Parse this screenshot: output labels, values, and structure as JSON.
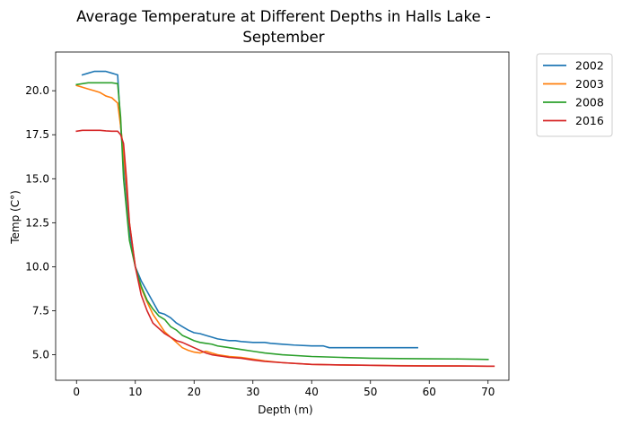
{
  "chart_data": {
    "type": "line",
    "title_lines": [
      "Average Temperature at Different Depths in Halls Lake -",
      "September"
    ],
    "xlabel": "Depth (m)",
    "ylabel": "Temp (C°)",
    "xlim": [
      -3.55,
      73.55
    ],
    "ylim": [
      3.55,
      22.2
    ],
    "xticks": [
      0,
      10,
      20,
      30,
      40,
      50,
      60,
      70
    ],
    "xtick_labels": [
      "0",
      "10",
      "20",
      "30",
      "40",
      "50",
      "60",
      "70"
    ],
    "yticks": [
      5.0,
      7.5,
      10.0,
      12.5,
      15.0,
      17.5,
      20.0
    ],
    "ytick_labels": [
      "5.0",
      "7.5",
      "10.0",
      "12.5",
      "15.0",
      "17.5",
      "20.0"
    ],
    "grid": false,
    "legend_position": "outside-top-right",
    "series": [
      {
        "name": "2002",
        "color": "#1f77b4",
        "points": [
          [
            1,
            20.9
          ],
          [
            2,
            21.0
          ],
          [
            3,
            21.1
          ],
          [
            4,
            21.1
          ],
          [
            5,
            21.1
          ],
          [
            6,
            21.0
          ],
          [
            7,
            20.9
          ],
          [
            7.5,
            18.0
          ],
          [
            8,
            16.0
          ],
          [
            9,
            12.0
          ],
          [
            10,
            10.0
          ],
          [
            11,
            9.2
          ],
          [
            12,
            8.6
          ],
          [
            13,
            8.0
          ],
          [
            14,
            7.4
          ],
          [
            15,
            7.3
          ],
          [
            16,
            7.1
          ],
          [
            17,
            6.8
          ],
          [
            18,
            6.6
          ],
          [
            19,
            6.4
          ],
          [
            20,
            6.25
          ],
          [
            21,
            6.2
          ],
          [
            22,
            6.1
          ],
          [
            23,
            6.0
          ],
          [
            24,
            5.9
          ],
          [
            25,
            5.85
          ],
          [
            26,
            5.8
          ],
          [
            27,
            5.8
          ],
          [
            28,
            5.75
          ],
          [
            30,
            5.7
          ],
          [
            32,
            5.7
          ],
          [
            33,
            5.65
          ],
          [
            35,
            5.6
          ],
          [
            37,
            5.55
          ],
          [
            40,
            5.5
          ],
          [
            42,
            5.5
          ],
          [
            43,
            5.4
          ],
          [
            45,
            5.4
          ],
          [
            50,
            5.4
          ],
          [
            55,
            5.4
          ],
          [
            58,
            5.4
          ]
        ]
      },
      {
        "name": "2003",
        "color": "#ff7f0e",
        "points": [
          [
            0,
            20.3
          ],
          [
            1,
            20.2
          ],
          [
            2,
            20.1
          ],
          [
            3,
            20.0
          ],
          [
            4,
            19.9
          ],
          [
            5,
            19.7
          ],
          [
            6,
            19.6
          ],
          [
            7,
            19.3
          ],
          [
            7.5,
            18.0
          ],
          [
            8,
            16.5
          ],
          [
            9,
            12.5
          ],
          [
            10,
            10.0
          ],
          [
            11,
            8.8
          ],
          [
            12,
            8.0
          ],
          [
            13,
            7.3
          ],
          [
            14,
            6.8
          ],
          [
            15,
            6.3
          ],
          [
            16,
            6.0
          ],
          [
            17,
            5.7
          ],
          [
            18,
            5.4
          ],
          [
            19,
            5.25
          ],
          [
            20,
            5.15
          ],
          [
            21,
            5.1
          ],
          [
            22,
            5.2
          ],
          [
            23,
            5.1
          ],
          [
            24,
            5.0
          ],
          [
            25,
            4.95
          ],
          [
            26,
            4.9
          ],
          [
            28,
            4.85
          ],
          [
            30,
            4.75
          ],
          [
            32,
            4.65
          ],
          [
            35,
            4.55
          ],
          [
            40,
            4.45
          ],
          [
            45,
            4.42
          ],
          [
            50,
            4.4
          ],
          [
            55,
            4.38
          ],
          [
            60,
            4.37
          ],
          [
            65,
            4.36
          ],
          [
            70,
            4.35
          ],
          [
            71,
            4.35
          ]
        ]
      },
      {
        "name": "2008",
        "color": "#2ca02c",
        "points": [
          [
            0,
            20.35
          ],
          [
            1,
            20.4
          ],
          [
            2,
            20.45
          ],
          [
            3,
            20.45
          ],
          [
            4,
            20.45
          ],
          [
            5,
            20.45
          ],
          [
            6,
            20.45
          ],
          [
            7,
            20.4
          ],
          [
            7.5,
            18.5
          ],
          [
            8,
            15.0
          ],
          [
            9,
            11.5
          ],
          [
            10,
            10.0
          ],
          [
            11,
            8.9
          ],
          [
            12,
            8.1
          ],
          [
            13,
            7.6
          ],
          [
            14,
            7.2
          ],
          [
            15,
            7.0
          ],
          [
            16,
            6.6
          ],
          [
            17,
            6.4
          ],
          [
            18,
            6.1
          ],
          [
            19,
            5.95
          ],
          [
            20,
            5.8
          ],
          [
            21,
            5.7
          ],
          [
            22,
            5.65
          ],
          [
            23,
            5.6
          ],
          [
            24,
            5.5
          ],
          [
            25,
            5.45
          ],
          [
            26,
            5.4
          ],
          [
            28,
            5.3
          ],
          [
            30,
            5.2
          ],
          [
            32,
            5.1
          ],
          [
            35,
            5.0
          ],
          [
            40,
            4.9
          ],
          [
            45,
            4.85
          ],
          [
            50,
            4.8
          ],
          [
            55,
            4.78
          ],
          [
            60,
            4.77
          ],
          [
            65,
            4.76
          ],
          [
            70,
            4.73
          ]
        ]
      },
      {
        "name": "2016",
        "color": "#d62728",
        "points": [
          [
            0,
            17.7
          ],
          [
            1,
            17.75
          ],
          [
            2,
            17.75
          ],
          [
            3,
            17.75
          ],
          [
            4,
            17.75
          ],
          [
            5,
            17.72
          ],
          [
            6,
            17.7
          ],
          [
            7,
            17.7
          ],
          [
            7.5,
            17.5
          ],
          [
            8,
            17.0
          ],
          [
            8.5,
            15.0
          ],
          [
            9,
            12.5
          ],
          [
            10,
            10.0
          ],
          [
            11,
            8.4
          ],
          [
            12,
            7.5
          ],
          [
            13,
            6.8
          ],
          [
            14,
            6.5
          ],
          [
            15,
            6.2
          ],
          [
            16,
            6.0
          ],
          [
            17,
            5.8
          ],
          [
            18,
            5.7
          ],
          [
            19,
            5.55
          ],
          [
            20,
            5.4
          ],
          [
            21,
            5.25
          ],
          [
            22,
            5.1
          ],
          [
            23,
            5.0
          ],
          [
            24,
            4.95
          ],
          [
            25,
            4.9
          ],
          [
            26,
            4.85
          ],
          [
            28,
            4.8
          ],
          [
            30,
            4.7
          ],
          [
            32,
            4.62
          ],
          [
            35,
            4.55
          ],
          [
            40,
            4.45
          ],
          [
            45,
            4.42
          ],
          [
            50,
            4.4
          ],
          [
            55,
            4.37
          ],
          [
            60,
            4.36
          ],
          [
            65,
            4.36
          ],
          [
            70,
            4.35
          ],
          [
            71,
            4.35
          ]
        ]
      }
    ]
  }
}
